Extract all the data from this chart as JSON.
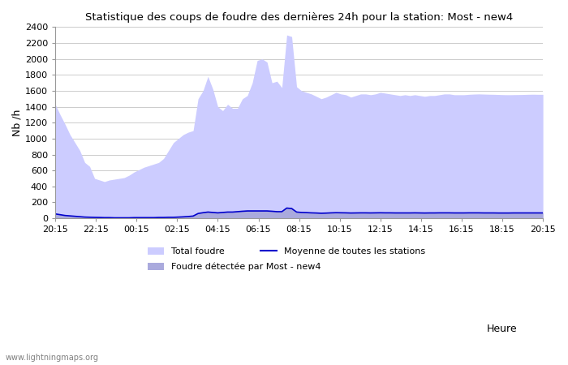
{
  "title": "Statistique des coups de foudre des dernières 24h pour la station: Most - new4",
  "xlabel": "Heure",
  "ylabel": "Nb /h",
  "watermark": "www.lightningmaps.org",
  "x_ticks": [
    "20:15",
    "22:15",
    "00:15",
    "02:15",
    "04:15",
    "06:15",
    "08:15",
    "10:15",
    "12:15",
    "14:15",
    "16:15",
    "18:15",
    "20:15"
  ],
  "ylim": [
    0,
    2400
  ],
  "yticks": [
    0,
    200,
    400,
    600,
    800,
    1000,
    1200,
    1400,
    1600,
    1800,
    2000,
    2200,
    2400
  ],
  "total_foudre_color": "#ccccff",
  "detected_color": "#aaaadd",
  "line_color": "#0000cc",
  "background_color": "#ffffff",
  "grid_color": "#cccccc",
  "total_foudre": [
    1430,
    1300,
    1180,
    1050,
    950,
    850,
    700,
    650,
    500,
    480,
    460,
    480,
    490,
    500,
    510,
    540,
    580,
    610,
    640,
    660,
    680,
    700,
    750,
    850,
    950,
    1000,
    1050,
    1080,
    1100,
    1500,
    1600,
    1780,
    1620,
    1400,
    1350,
    1430,
    1380,
    1380,
    1500,
    1540,
    1700,
    1980,
    2000,
    1960,
    1700,
    1720,
    1640,
    2300,
    2280,
    1650,
    1600,
    1580,
    1560,
    1530,
    1500,
    1520,
    1550,
    1580,
    1560,
    1550,
    1520,
    1540,
    1560,
    1560,
    1550,
    1560,
    1580,
    1570,
    1560,
    1550,
    1540,
    1550,
    1540,
    1550,
    1540,
    1530,
    1540,
    1540,
    1550,
    1560,
    1560,
    1550,
    1550,
    1550,
    1555,
    1558,
    1560,
    1558,
    1556,
    1555,
    1553,
    1551,
    1550,
    1551,
    1552,
    1553,
    1555,
    1556,
    1555,
    1555
  ],
  "detected_foudre": [
    60,
    50,
    40,
    35,
    30,
    25,
    20,
    18,
    15,
    12,
    10,
    10,
    8,
    8,
    8,
    8,
    10,
    10,
    10,
    10,
    10,
    12,
    12,
    15,
    15,
    18,
    20,
    25,
    30,
    65,
    75,
    85,
    80,
    75,
    80,
    85,
    85,
    90,
    95,
    100,
    100,
    100,
    100,
    100,
    95,
    90,
    90,
    140,
    135,
    85,
    80,
    78,
    75,
    73,
    70,
    72,
    75,
    77,
    76,
    75,
    73,
    74,
    75,
    75,
    74,
    75,
    76,
    75,
    75,
    74,
    74,
    74,
    74,
    75,
    74,
    73,
    74,
    74,
    75,
    75,
    75,
    74,
    74,
    74,
    75,
    75,
    75,
    74,
    74,
    74,
    73,
    73,
    73,
    74,
    74,
    74,
    74,
    74,
    74,
    74
  ],
  "mean_line": [
    55,
    45,
    35,
    30,
    25,
    20,
    15,
    13,
    11,
    10,
    8,
    8,
    6,
    6,
    6,
    6,
    8,
    8,
    8,
    8,
    8,
    10,
    10,
    12,
    12,
    15,
    18,
    22,
    28,
    60,
    70,
    78,
    73,
    68,
    73,
    78,
    78,
    83,
    88,
    92,
    92,
    92,
    92,
    92,
    88,
    83,
    83,
    128,
    122,
    78,
    73,
    71,
    68,
    66,
    63,
    65,
    68,
    70,
    69,
    68,
    66,
    67,
    68,
    68,
    67,
    68,
    69,
    68,
    68,
    67,
    67,
    67,
    67,
    68,
    67,
    66,
    67,
    67,
    68,
    68,
    68,
    67,
    67,
    67,
    68,
    68,
    68,
    67,
    67,
    67,
    66,
    66,
    66,
    67,
    67,
    67,
    67,
    67,
    67,
    67
  ],
  "n_points": 100
}
